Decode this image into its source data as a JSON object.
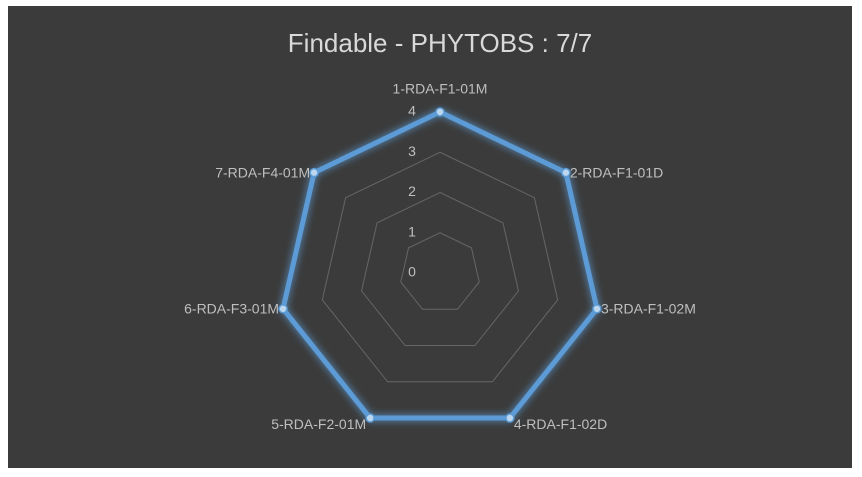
{
  "chart_data": {
    "type": "radar",
    "title": "Findable - PHYTOBS : 7/7",
    "categories": [
      "1-RDA-F1-01M",
      "2-RDA-F1-01D",
      "3-RDA-F1-02M",
      "4-RDA-F1-02D",
      "5-RDA-F2-01M",
      "6-RDA-F3-01M",
      "7-RDA-F4-01M"
    ],
    "values": [
      4,
      4,
      4,
      4,
      4,
      4,
      4
    ],
    "color": "#5b9bd5",
    "ylim": [
      0,
      4
    ],
    "yticks": [
      0,
      1,
      2,
      3,
      4
    ],
    "grid": true
  }
}
